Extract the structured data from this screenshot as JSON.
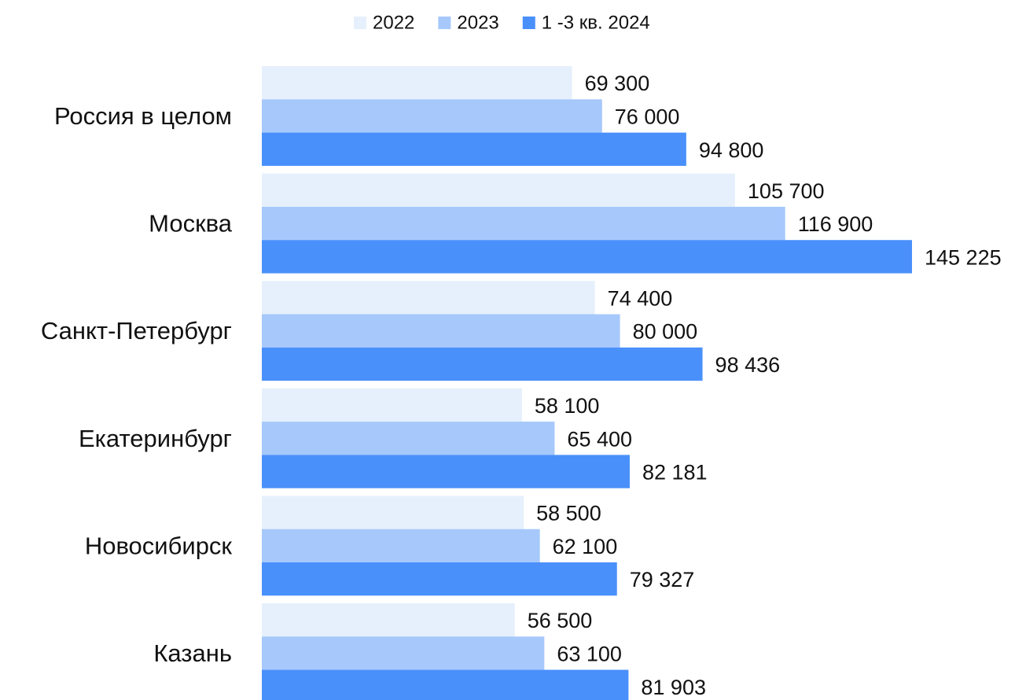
{
  "chart_data": {
    "type": "bar",
    "orientation": "horizontal",
    "categories": [
      "Россия в целом",
      "Москва",
      "Санкт-Петербург",
      "Екатеринбург",
      "Новосибирск",
      "Казань"
    ],
    "series": [
      {
        "name": "2022",
        "color": "#e6f0fc",
        "values": [
          69300,
          105700,
          74400,
          58100,
          58500,
          56500
        ],
        "value_labels": [
          "69 300",
          "105 700",
          "74 400",
          "58 100",
          "58 500",
          "56 500"
        ]
      },
      {
        "name": "2023",
        "color": "#a6c8fb",
        "values": [
          76000,
          116900,
          80000,
          65400,
          62100,
          63100
        ],
        "value_labels": [
          "76 000",
          "116 900",
          "80 000",
          "65 400",
          "62 100",
          "63 100"
        ]
      },
      {
        "name": "1 -3 кв. 2024",
        "color": "#4a90fb",
        "values": [
          94800,
          145225,
          98436,
          82181,
          79327,
          81903
        ],
        "value_labels": [
          "94 800",
          "145 225",
          "98 436",
          "82 181",
          "79 327",
          "81 903"
        ]
      }
    ],
    "legend": "top"
  }
}
